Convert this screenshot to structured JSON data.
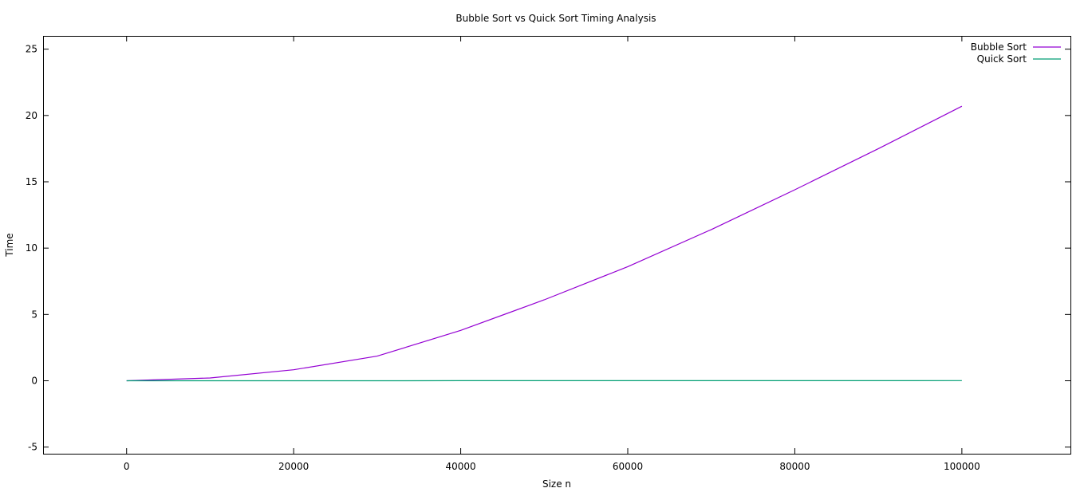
{
  "chart_data": {
    "type": "line",
    "title": "Bubble Sort vs Quick Sort Timing Analysis",
    "xlabel": "Size n",
    "ylabel": "Time",
    "xlim": [
      -10000,
      113000
    ],
    "ylim": [
      -5.5,
      26
    ],
    "xticks": [
      0,
      20000,
      40000,
      60000,
      80000,
      100000
    ],
    "yticks": [
      -5,
      0,
      5,
      10,
      15,
      20,
      25
    ],
    "grid": false,
    "legend_position": "top-right",
    "series": [
      {
        "name": "Bubble Sort",
        "color": "#9400d3",
        "x": [
          0,
          10000,
          20000,
          30000,
          40000,
          50000,
          60000,
          70000,
          80000,
          90000,
          100000
        ],
        "y": [
          0,
          0.21,
          0.83,
          1.86,
          3.8,
          6.1,
          8.6,
          11.4,
          14.4,
          17.5,
          20.7
        ]
      },
      {
        "name": "Quick Sort",
        "color": "#009e73",
        "x": [
          0,
          10000,
          20000,
          30000,
          40000,
          50000,
          60000,
          70000,
          80000,
          90000,
          100000
        ],
        "y": [
          0,
          0.001,
          0.002,
          0.003,
          0.004,
          0.005,
          0.006,
          0.007,
          0.008,
          0.009,
          0.01
        ]
      }
    ]
  }
}
